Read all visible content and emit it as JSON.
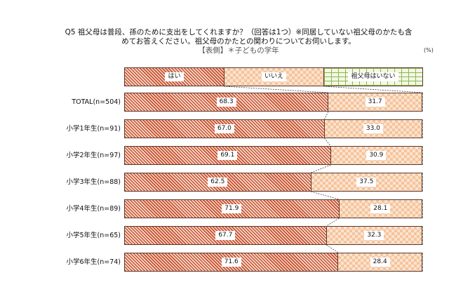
{
  "header": {
    "line1": "Q5  祖父母は普段、孫のために支出をしてくれますか？（回答は1つ）※同居していない祖父母のかたも含",
    "line2": "めてお答えください。祖父母のかたとの関わりについてお伺いします。",
    "line3": "【表側】＊子どもの学年",
    "unit": "(%)"
  },
  "legend": {
    "yes": "はい",
    "no": "いいえ",
    "none": "祖父母はいない"
  },
  "colors": {
    "yes": "#c8502e",
    "no": "#f5c49c",
    "none": "#8fb84a"
  },
  "chart_data": {
    "type": "bar",
    "orientation": "horizontal",
    "stacked": true,
    "percent": true,
    "title": "Q5 祖父母は普段、孫のために支出をしてくれますか？（回答は1つ）※同居していない祖父母のかたも含めてお答えください。祖父母のかたとの関わりについてお伺いします。",
    "subtitle": "【表側】＊子どもの学年",
    "unit": "(%)",
    "categories": [
      "TOTAL(n=504)",
      "小学1年生(n=91)",
      "小学2年生(n=97)",
      "小学3年生(n=88)",
      "小学4年生(n=89)",
      "小学5年生(n=65)",
      "小学6年生(n=74)"
    ],
    "series": [
      {
        "name": "はい",
        "values": [
          68.3,
          67.0,
          69.1,
          62.5,
          71.9,
          67.7,
          71.6
        ]
      },
      {
        "name": "いいえ",
        "values": [
          31.7,
          33.0,
          30.9,
          37.5,
          28.1,
          32.3,
          28.4
        ]
      },
      {
        "name": "祖父母はいない",
        "values": [
          0,
          0,
          0,
          0,
          0,
          0,
          0
        ]
      }
    ],
    "value_labels": {
      "はい": [
        "68.3",
        "67.0",
        "69.1",
        "62.5",
        "71.9",
        "67.7",
        "71.6"
      ],
      "いいえ": [
        "31.7",
        "33.0",
        "30.9",
        "37.5",
        "28.1",
        "32.3",
        "28.4"
      ]
    },
    "legend_position": "top",
    "xlim": [
      0,
      100
    ],
    "grid": false
  },
  "rows": [
    {
      "label": "TOTAL(n=504)",
      "yes": "68.3",
      "no": "31.7"
    },
    {
      "label": "小学1年生(n=91)",
      "yes": "67.0",
      "no": "33.0"
    },
    {
      "label": "小学2年生(n=97)",
      "yes": "69.1",
      "no": "30.9"
    },
    {
      "label": "小学3年生(n=88)",
      "yes": "62.5",
      "no": "37.5"
    },
    {
      "label": "小学4年生(n=89)",
      "yes": "71.9",
      "no": "28.1"
    },
    {
      "label": "小学5年生(n=65)",
      "yes": "67.7",
      "no": "32.3"
    },
    {
      "label": "小学6年生(n=74)",
      "yes": "71.6",
      "no": "28.4"
    }
  ]
}
